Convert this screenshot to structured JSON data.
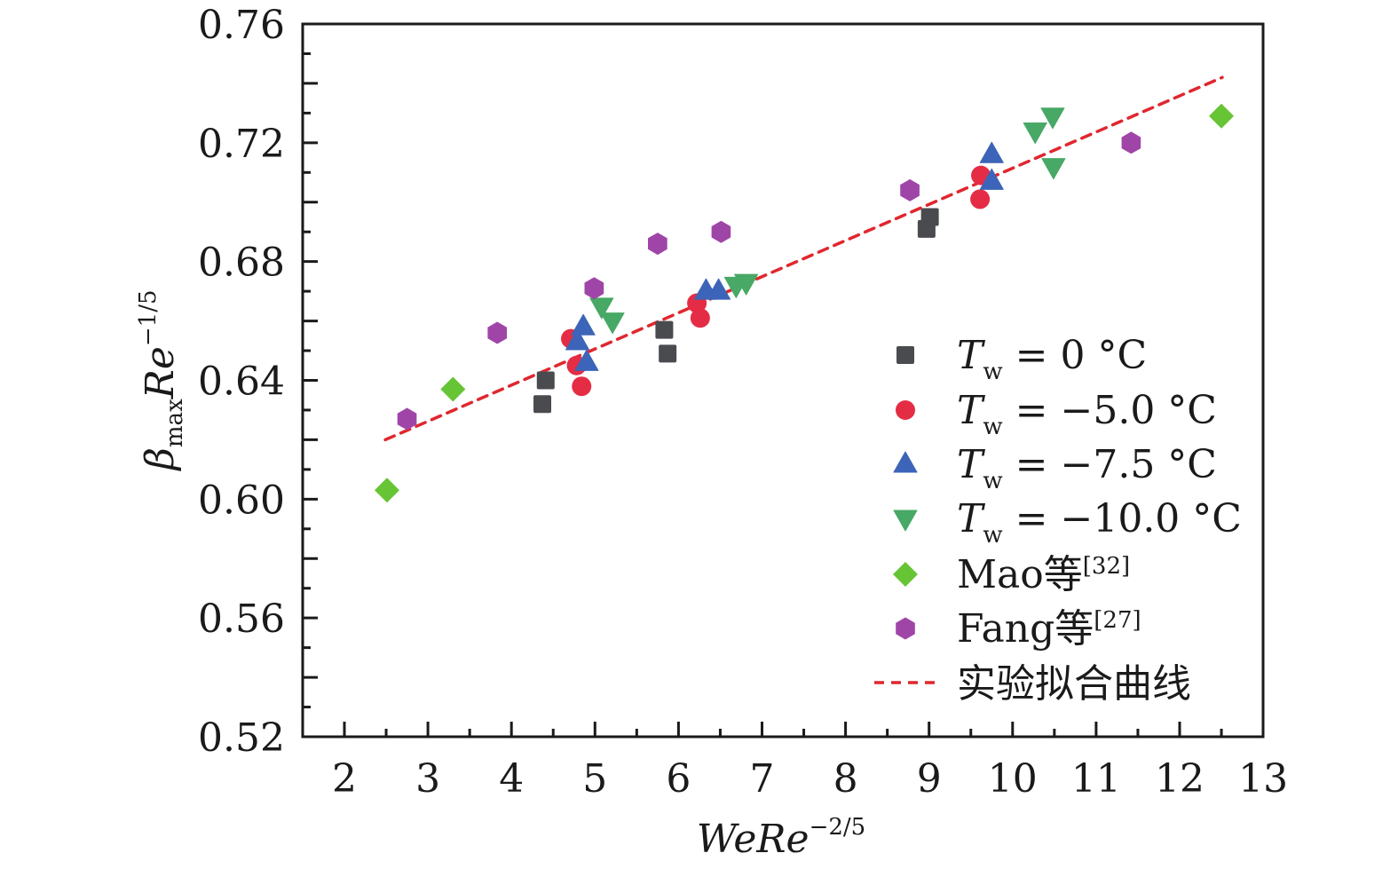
{
  "chart_data": {
    "type": "scatter",
    "title": "",
    "xlabel": {
      "base": "WeRe",
      "sup": "−2/5"
    },
    "ylabel": {
      "base": "β",
      "sub": "max",
      "mid": "Re",
      "sup": "−1/5"
    },
    "xlim": [
      1.5,
      13
    ],
    "ylim": [
      0.52,
      0.76
    ],
    "x_ticks": [
      2,
      3,
      4,
      5,
      6,
      7,
      8,
      9,
      10,
      11,
      12,
      13
    ],
    "x_tick_labels": [
      "2",
      "3",
      "4",
      "5",
      "6",
      "7",
      "8",
      "9",
      "10",
      "11",
      "12",
      "13"
    ],
    "x_minor_step": 0.5,
    "y_ticks": [
      0.52,
      0.56,
      0.6,
      0.64,
      0.68,
      0.72,
      0.76
    ],
    "y_tick_labels": [
      "0.52",
      "0.56",
      "0.60",
      "0.64",
      "0.68",
      "0.72",
      "0.76"
    ],
    "y_minor_step": 0.01,
    "y_major_step": 0.02,
    "grid": false,
    "legend_position": "bottom-right",
    "series": [
      {
        "name": "Tw = 0 °C",
        "label_main": "T",
        "label_sub": "w",
        "label_rest": " = 0 °C",
        "marker": "square",
        "color": "#4a4b4f",
        "points": [
          [
            4.41,
            0.64
          ],
          [
            4.37,
            0.632
          ],
          [
            5.83,
            0.657
          ],
          [
            5.87,
            0.649
          ],
          [
            9.01,
            0.695
          ],
          [
            8.97,
            0.691
          ]
        ]
      },
      {
        "name": "Tw = −5.0 °C",
        "label_main": "T",
        "label_sub": "w",
        "label_rest": " = −5.0 °C",
        "marker": "circle",
        "color": "#e42d45",
        "points": [
          [
            4.71,
            0.654
          ],
          [
            4.78,
            0.645
          ],
          [
            4.84,
            0.638
          ],
          [
            6.22,
            0.666
          ],
          [
            6.26,
            0.661
          ],
          [
            9.62,
            0.709
          ],
          [
            9.61,
            0.701
          ]
        ]
      },
      {
        "name": "Tw = −7.5 °C",
        "label_main": "T",
        "label_sub": "w",
        "label_rest": " = −7.5 °C",
        "marker": "triangle-up",
        "color": "#3c64b8",
        "points": [
          [
            4.86,
            0.658
          ],
          [
            4.79,
            0.653
          ],
          [
            4.9,
            0.646
          ],
          [
            6.33,
            0.67
          ],
          [
            6.48,
            0.67
          ],
          [
            9.75,
            0.716
          ],
          [
            9.75,
            0.707
          ]
        ]
      },
      {
        "name": "Tw = −10.0 °C",
        "label_main": "T",
        "label_sub": "w",
        "label_rest": " = −10.0 °C",
        "marker": "triangle-down",
        "color": "#48a866",
        "points": [
          [
            5.08,
            0.665
          ],
          [
            5.21,
            0.66
          ],
          [
            6.69,
            0.672
          ],
          [
            6.81,
            0.673
          ],
          [
            10.48,
            0.729
          ],
          [
            10.27,
            0.724
          ],
          [
            10.49,
            0.712
          ]
        ]
      },
      {
        "name": "Mao等[32]",
        "label_main": "Mao等",
        "label_ref": "[32]",
        "marker": "diamond",
        "color": "#66c435",
        "points": [
          [
            2.51,
            0.603
          ],
          [
            3.3,
            0.637
          ],
          [
            12.5,
            0.729
          ]
        ]
      },
      {
        "name": "Fang等[27]",
        "label_main": "Fang等",
        "label_ref": "[27]",
        "marker": "hexagon",
        "color": "#a045a8",
        "points": [
          [
            2.75,
            0.627
          ],
          [
            3.83,
            0.656
          ],
          [
            4.99,
            0.671
          ],
          [
            5.75,
            0.686
          ],
          [
            6.51,
            0.69
          ],
          [
            8.77,
            0.704
          ],
          [
            11.42,
            0.72
          ]
        ]
      }
    ],
    "fit_line": {
      "name": "实验拟合曲线",
      "style": "dashed",
      "color": "#e0272e",
      "x": [
        2.49,
        12.51
      ],
      "y": [
        0.62,
        0.742
      ]
    }
  }
}
